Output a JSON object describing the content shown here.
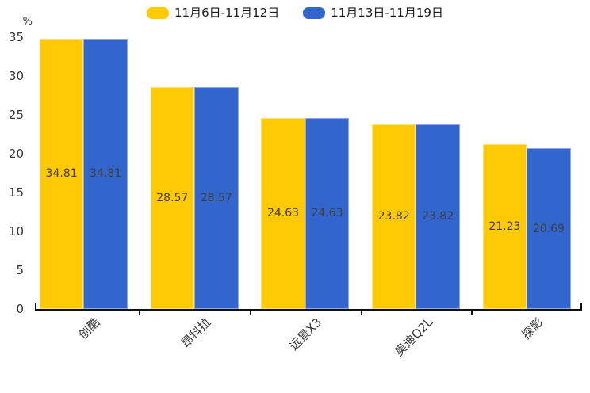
{
  "chart_data": {
    "type": "bar",
    "title": "",
    "categories": [
      "创酷",
      "昂科拉",
      "远景X3",
      "奥迪Q2L",
      "探影"
    ],
    "series": [
      {
        "name": "11月6日-11月12日",
        "color": "#FFC904",
        "values": [
          34.81,
          28.57,
          24.63,
          23.82,
          21.23
        ]
      },
      {
        "name": "11月13日-11月19日",
        "color": "#3366CC",
        "values": [
          34.81,
          28.57,
          24.63,
          23.82,
          20.69
        ]
      }
    ],
    "ylabel": "%",
    "ylim": [
      0,
      35
    ],
    "yticks": [
      0,
      5,
      10,
      15,
      20,
      25,
      30,
      35
    ],
    "grid": false,
    "legend_position": "top",
    "value_labels_visible": true,
    "axis_color": "#111111",
    "text_color": "#333333"
  }
}
